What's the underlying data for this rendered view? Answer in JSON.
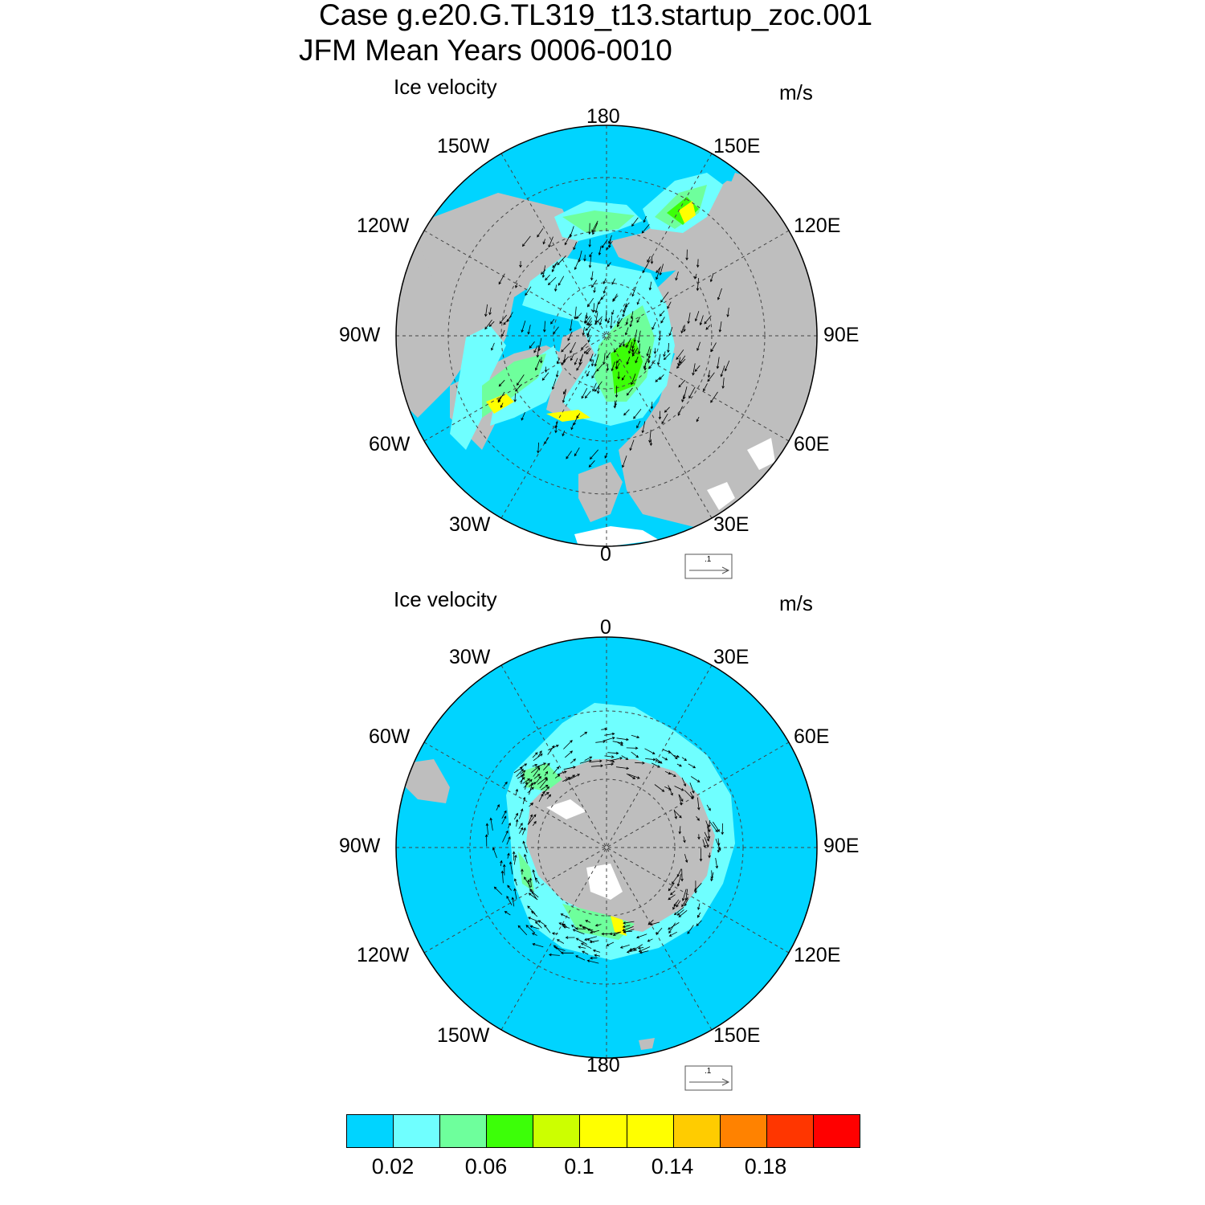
{
  "title": {
    "line1": "Case g.e20.G.TL319_t13.startup_zoc.001",
    "line2": "JFM Mean   Years 0006-0010"
  },
  "panels": [
    {
      "hemisphere": "north",
      "left_string": "Ice velocity",
      "right_string": "m/s",
      "lon_labels": {
        "top": "180",
        "top_left": "150W",
        "top_right": "150E",
        "upper_left": "120W",
        "upper_right": "120E",
        "left": "90W",
        "right": "90E",
        "lower_left": "60W",
        "lower_right": "60E",
        "bottom_left": "30W",
        "bottom_right": "30E",
        "bottom": "0"
      },
      "ref_vector_label": ".1"
    },
    {
      "hemisphere": "south",
      "left_string": "Ice velocity",
      "right_string": "m/s",
      "lon_labels": {
        "top": "0",
        "top_left": "30W",
        "top_right": "30E",
        "upper_left": "60W",
        "upper_right": "60E",
        "left": "90W",
        "right": "90E",
        "lower_left": "120W",
        "lower_right": "120E",
        "bottom_left": "150W",
        "bottom_right": "150E",
        "bottom": "180"
      },
      "ref_vector_label": ".1"
    }
  ],
  "colorbar": {
    "colors": [
      "#00d4ff",
      "#6fffff",
      "#6eff9c",
      "#3cff08",
      "#ccff00",
      "#ffff00",
      "#ffff00",
      "#ffcc00",
      "#ff8200",
      "#ff3600",
      "#ff0000"
    ],
    "labels": [
      "0.02",
      "0.06",
      "0.1",
      "0.14",
      "0.18"
    ]
  },
  "colors": {
    "ocean": "#00d4ff",
    "land": "#bebebe",
    "ice_low": "#6fffff",
    "ice_mid": "#6eff9c",
    "ice_green": "#3cff08",
    "ice_yellow": "#ffff00",
    "missing": "#ffffff"
  }
}
